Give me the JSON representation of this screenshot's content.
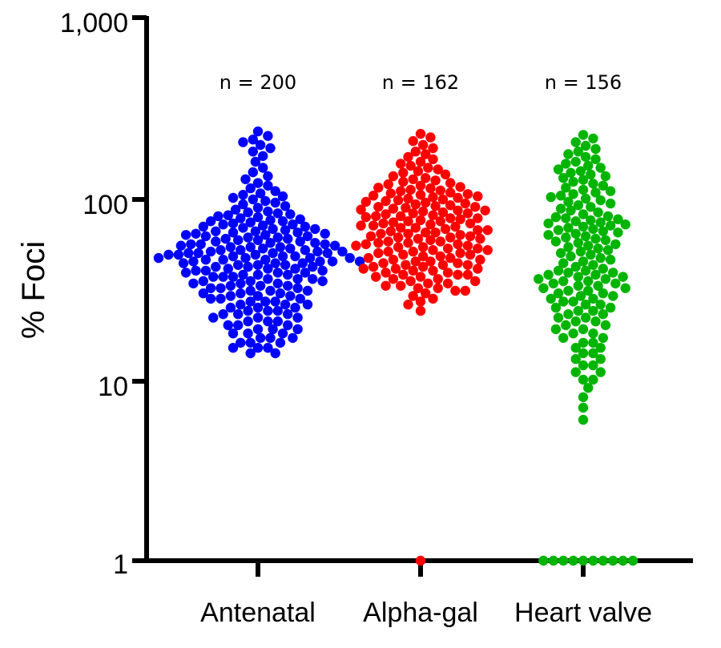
{
  "chart_data": {
    "type": "scatter",
    "ylabel": "% Foci",
    "yscale": "log",
    "ylim": [
      1,
      1000
    ],
    "yticks": [
      "1",
      "10",
      "100",
      "1,000"
    ],
    "categories": [
      "Antenatal",
      "Alpha-gal",
      "Heart valve"
    ],
    "annotations": [
      "n = 200",
      "n = 162",
      "n = 156"
    ],
    "grid": false,
    "legend": "none",
    "series": [
      {
        "category": "Antenatal",
        "color": "#0000ff",
        "count": 200,
        "values": [
          235,
          222,
          212,
          205,
          198,
          190,
          182,
          172,
          160,
          148,
          140,
          133,
          128,
          122,
          118,
          114,
          110,
          107,
          105,
          103,
          101,
          99,
          97,
          95,
          93,
          91,
          89,
          87,
          85,
          84,
          83,
          82,
          81,
          80,
          79,
          78,
          77,
          76,
          75,
          75,
          74,
          73,
          72,
          72,
          71,
          70,
          70,
          69,
          68,
          68,
          67,
          66,
          66,
          65,
          65,
          64,
          64,
          63,
          63,
          62,
          62,
          61,
          61,
          60,
          60,
          59,
          59,
          58,
          58,
          57,
          57,
          56,
          56,
          56,
          55,
          55,
          54,
          54,
          54,
          53,
          53,
          52,
          52,
          52,
          51,
          51,
          51,
          50,
          50,
          50,
          50,
          49,
          49,
          49,
          48,
          48,
          48,
          47,
          47,
          47,
          47,
          46,
          46,
          46,
          45,
          45,
          45,
          45,
          44,
          44,
          44,
          43,
          43,
          43,
          42,
          42,
          42,
          41,
          41,
          41,
          40,
          40,
          40,
          39,
          39,
          39,
          38,
          38,
          38,
          37,
          37,
          37,
          36,
          36,
          36,
          35,
          35,
          35,
          34,
          34,
          34,
          33,
          33,
          33,
          32,
          32,
          32,
          31,
          31,
          31,
          30,
          30,
          30,
          29,
          29,
          29,
          28,
          28,
          28,
          27,
          27,
          27,
          26,
          26,
          26,
          25,
          25,
          25,
          24,
          24,
          24,
          23,
          23,
          23,
          22,
          22,
          22,
          21,
          21,
          21,
          20,
          20,
          20,
          19,
          19,
          19,
          18,
          18,
          18,
          17,
          17,
          17,
          16,
          16,
          16,
          15,
          15,
          15,
          14,
          14
        ]
      },
      {
        "category": "Alpha-gal",
        "color": "#ff0000",
        "count": 162,
        "values": [
          228,
          218,
          208,
          198,
          190,
          182,
          176,
          170,
          165,
          160,
          156,
          152,
          148,
          145,
          142,
          139,
          136,
          133,
          130,
          128,
          126,
          124,
          122,
          120,
          118,
          116,
          115,
          114,
          112,
          111,
          110,
          108,
          107,
          106,
          105,
          104,
          103,
          102,
          101,
          100,
          99,
          98,
          97,
          96,
          95,
          94,
          93,
          92,
          91,
          90,
          90,
          89,
          88,
          87,
          86,
          86,
          85,
          84,
          83,
          83,
          82,
          81,
          80,
          80,
          79,
          78,
          78,
          77,
          76,
          75,
          75,
          74,
          73,
          73,
          72,
          71,
          71,
          70,
          69,
          69,
          68,
          67,
          67,
          66,
          65,
          65,
          64,
          64,
          63,
          62,
          62,
          61,
          61,
          60,
          60,
          59,
          58,
          58,
          57,
          57,
          56,
          56,
          55,
          55,
          54,
          54,
          53,
          53,
          52,
          52,
          51,
          51,
          50,
          50,
          49,
          49,
          48,
          48,
          47,
          47,
          46,
          46,
          45,
          45,
          44,
          44,
          43,
          43,
          43,
          42,
          42,
          41,
          41,
          41,
          40,
          40,
          39,
          39,
          38,
          38,
          38,
          37,
          37,
          36,
          36,
          35,
          35,
          34,
          34,
          33,
          33,
          32,
          32,
          31,
          31,
          30,
          29,
          28,
          27,
          26,
          24,
          1
        ]
      },
      {
        "category": "Heart valve",
        "color": "#00b400",
        "count": 156,
        "values": [
          225,
          215,
          205,
          196,
          188,
          182,
          176,
          170,
          165,
          160,
          156,
          152,
          148,
          145,
          142,
          139,
          136,
          133,
          130,
          127,
          124,
          121,
          118,
          115,
          112,
          110,
          108,
          106,
          104,
          102,
          100,
          98,
          96,
          94,
          92,
          90,
          88,
          86,
          84,
          82,
          80,
          79,
          78,
          77,
          76,
          75,
          74,
          73,
          72,
          71,
          70,
          69,
          68,
          67,
          66,
          65,
          64,
          63,
          62,
          61,
          60,
          59,
          58,
          57,
          56,
          55,
          54,
          53,
          52,
          51,
          50,
          49,
          48,
          47,
          46,
          45,
          44,
          43,
          42,
          41,
          40,
          40,
          39,
          39,
          38,
          38,
          37,
          37,
          36,
          36,
          35,
          35,
          34,
          34,
          33,
          33,
          32,
          32,
          31,
          31,
          30,
          30,
          29,
          29,
          28,
          28,
          27,
          27,
          26,
          26,
          25,
          25,
          24,
          24,
          23,
          23,
          22,
          22,
          21,
          21,
          20,
          20,
          19,
          19,
          18,
          18,
          17,
          17,
          16,
          16,
          15,
          15,
          14,
          14,
          13,
          13,
          12,
          12,
          11,
          11,
          10,
          10,
          9,
          8,
          7,
          6,
          1,
          1,
          1,
          1,
          1,
          1,
          1,
          1,
          1,
          1
        ]
      }
    ]
  }
}
